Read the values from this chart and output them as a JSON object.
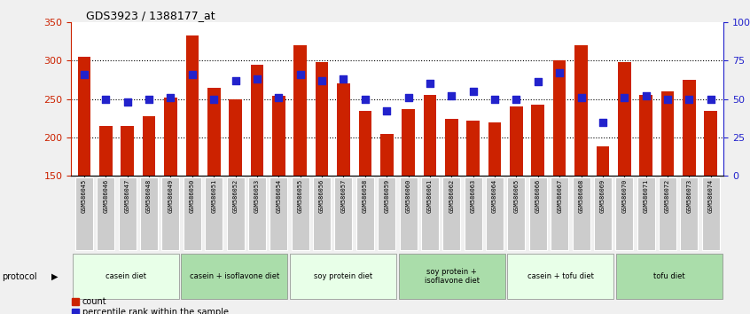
{
  "title": "GDS3923 / 1388177_at",
  "samples": [
    "GSM586045",
    "GSM586046",
    "GSM586047",
    "GSM586048",
    "GSM586049",
    "GSM586050",
    "GSM586051",
    "GSM586052",
    "GSM586053",
    "GSM586054",
    "GSM586055",
    "GSM586056",
    "GSM586057",
    "GSM586058",
    "GSM586059",
    "GSM586060",
    "GSM586061",
    "GSM586062",
    "GSM586063",
    "GSM586064",
    "GSM586065",
    "GSM586066",
    "GSM586067",
    "GSM586068",
    "GSM586069",
    "GSM586070",
    "GSM586071",
    "GSM586072",
    "GSM586073",
    "GSM586074"
  ],
  "counts": [
    305,
    215,
    215,
    228,
    252,
    332,
    265,
    250,
    294,
    254,
    320,
    298,
    270,
    234,
    205,
    237,
    255,
    224,
    222,
    220,
    240,
    243,
    300,
    320,
    188,
    298,
    255,
    260,
    275,
    234
  ],
  "percentiles": [
    66,
    50,
    48,
    50,
    51,
    66,
    50,
    62,
    63,
    51,
    66,
    62,
    63,
    50,
    42,
    51,
    60,
    52,
    55,
    50,
    50,
    61,
    67,
    51,
    35,
    51,
    52,
    50,
    50,
    50
  ],
  "ylim_left": [
    150,
    350
  ],
  "ylim_right": [
    0,
    100
  ],
  "yticks_left": [
    150,
    200,
    250,
    300,
    350
  ],
  "yticks_right": [
    0,
    25,
    50,
    75,
    100
  ],
  "ytick_labels_right": [
    "0",
    "25",
    "50",
    "75",
    "100%"
  ],
  "bar_color": "#cc2200",
  "dot_color": "#2222cc",
  "dot_size": 28,
  "protocols": [
    {
      "label": "casein diet",
      "start": 0,
      "end": 5,
      "color": "#e8ffe8"
    },
    {
      "label": "casein + isoflavone diet",
      "start": 5,
      "end": 10,
      "color": "#aaddaa"
    },
    {
      "label": "soy protein diet",
      "start": 10,
      "end": 15,
      "color": "#e8ffe8"
    },
    {
      "label": "soy protein +\nisoflavone diet",
      "start": 15,
      "end": 20,
      "color": "#aaddaa"
    },
    {
      "label": "casein + tofu diet",
      "start": 20,
      "end": 25,
      "color": "#e8ffe8"
    },
    {
      "label": "tofu diet",
      "start": 25,
      "end": 30,
      "color": "#aaddaa"
    }
  ],
  "legend_count_label": "count",
  "legend_pct_label": "percentile rank within the sample",
  "protocol_label": "protocol",
  "bg_color": "#f0f0f0",
  "plot_bg_color": "#ffffff",
  "left_axis_color": "#cc2200",
  "right_axis_color": "#2222cc",
  "sample_bg_color": "#cccccc",
  "grid_dotted_color": "#333333"
}
